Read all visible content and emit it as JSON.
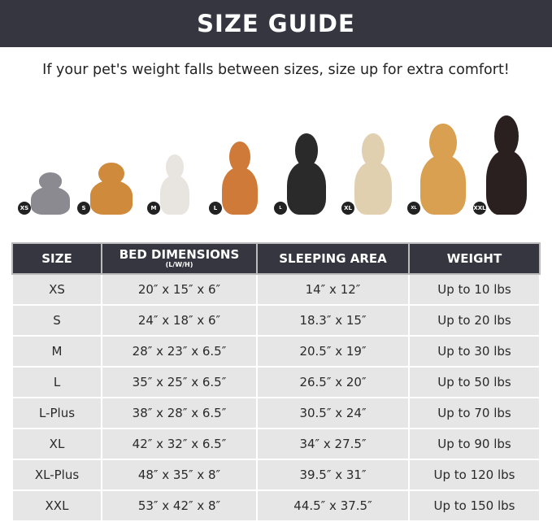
{
  "title": "SIZE GUIDE",
  "subtitle": "If your pet's weight falls between sizes, size up for extra comfort!",
  "pets": [
    {
      "badge": "XS",
      "color": "#8a8a90"
    },
    {
      "badge": "S",
      "color": "#d08a3c"
    },
    {
      "badge": "M",
      "color": "#e8e4e0"
    },
    {
      "badge": "L",
      "color": "#d07a3a"
    },
    {
      "badge": "L PLUS",
      "color": "#2a2a2a"
    },
    {
      "badge": "XL",
      "color": "#e0d0b0"
    },
    {
      "badge": "XL PLUS",
      "color": "#d8a050"
    },
    {
      "badge": "XXL",
      "color": "#2a2020"
    }
  ],
  "table": {
    "headers": {
      "size": "SIZE",
      "bed": "BED DIMENSIONS",
      "bed_sub": "(L/W/H)",
      "sleep": "SLEEPING AREA",
      "weight": "WEIGHT"
    },
    "rows": [
      [
        "XS",
        "20″ x 15″ x 6″",
        "14″ x 12″",
        "Up to 10 lbs"
      ],
      [
        "S",
        "24″ x 18″ x 6″",
        "18.3″ x 15″",
        "Up to 20 lbs"
      ],
      [
        "M",
        "28″ x 23″ x 6.5″",
        "20.5″ x 19″",
        "Up to 30 lbs"
      ],
      [
        "L",
        "35″ x 25″ x 6.5″",
        "26.5″ x 20″",
        "Up to 50 lbs"
      ],
      [
        "L-Plus",
        "38″ x 28″ x 6.5″",
        "30.5″ x 24″",
        "Up to 70 lbs"
      ],
      [
        "XL",
        "42″ x 32″ x 6.5″",
        "34″ x 27.5″",
        "Up to 90 lbs"
      ],
      [
        "XL-Plus",
        "48″ x 35″ x 8″",
        "39.5″ x 31″",
        "Up to 120 lbs"
      ],
      [
        "XXL",
        "53″ x 42″ x 8″",
        "44.5″ x 37.5″",
        "Up to 150 lbs"
      ]
    ]
  }
}
